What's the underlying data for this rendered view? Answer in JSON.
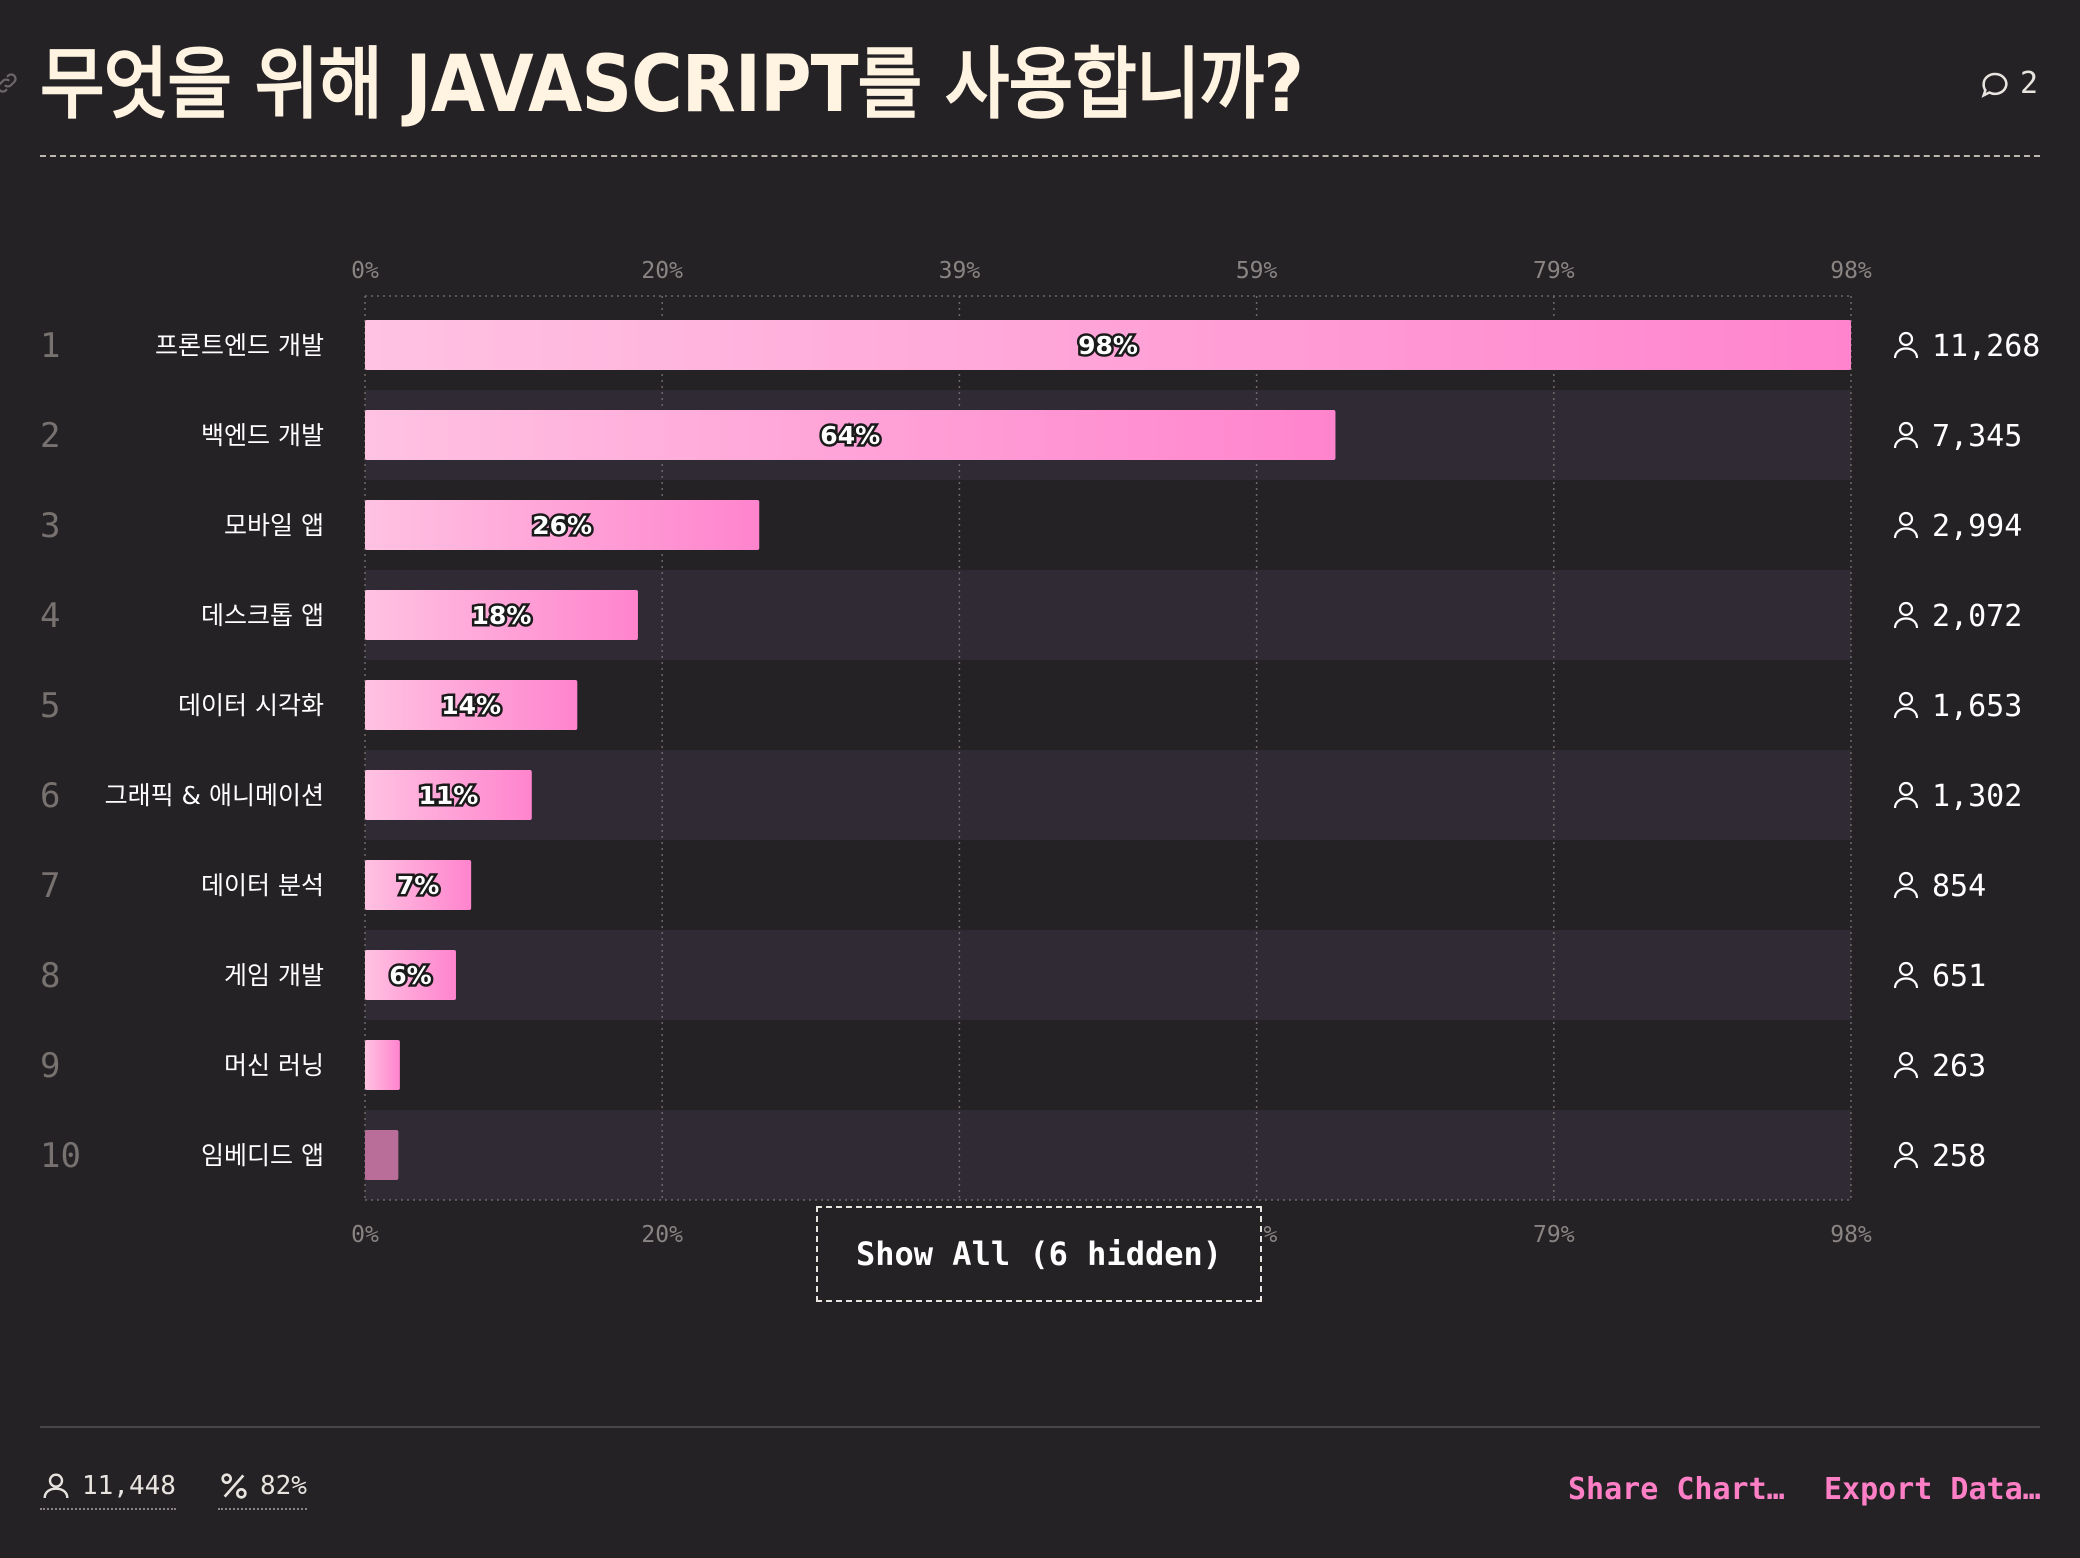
{
  "header": {
    "title": "무엇을 위해 JAVASCRIPT를 사용합니까?",
    "comment_count": "2"
  },
  "chart_data": {
    "type": "bar",
    "orientation": "horizontal",
    "title": "무엇을 위해 JAVASCRIPT를 사용합니까?",
    "xlim": [
      0,
      98
    ],
    "x_ticks": [
      "0%",
      "20%",
      "39%",
      "59%",
      "79%",
      "98%"
    ],
    "grid": true,
    "categories": [
      "프론트엔드 개발",
      "백엔드 개발",
      "모바일 앱",
      "데스크톱 앱",
      "데이터 시각화",
      "그래픽 & 애니메이션",
      "데이터 분석",
      "게임 개발",
      "머신 러닝",
      "임베디드 앱"
    ],
    "ranks": [
      "1",
      "2",
      "3",
      "4",
      "5",
      "6",
      "7",
      "8",
      "9",
      "10"
    ],
    "values": [
      98,
      64,
      26,
      18,
      14,
      11,
      7,
      6,
      2.3,
      2.2
    ],
    "value_labels": [
      "98%",
      "64%",
      "26%",
      "18%",
      "14%",
      "11%",
      "7%",
      "6%",
      "",
      ""
    ],
    "counts": [
      "11,268",
      "7,345",
      "2,994",
      "2,072",
      "1,653",
      "1,302",
      "854",
      "651",
      "263",
      "258"
    ],
    "colors": {
      "bar_start": "#ffc2e2",
      "bar_end": "#ff84cd",
      "bar_faded": "#b86e98",
      "row_band": "#2f2a34",
      "grid": "#6d6769"
    }
  },
  "actions": {
    "show_all": "Show All (6 hidden)",
    "share": "Share Chart…",
    "export": "Export Data…"
  },
  "footer": {
    "respondents": "11,448",
    "percent": "82%"
  },
  "icons": {
    "link": "link-icon",
    "comment": "comment-icon",
    "user": "user-icon",
    "percent": "percent-icon"
  }
}
